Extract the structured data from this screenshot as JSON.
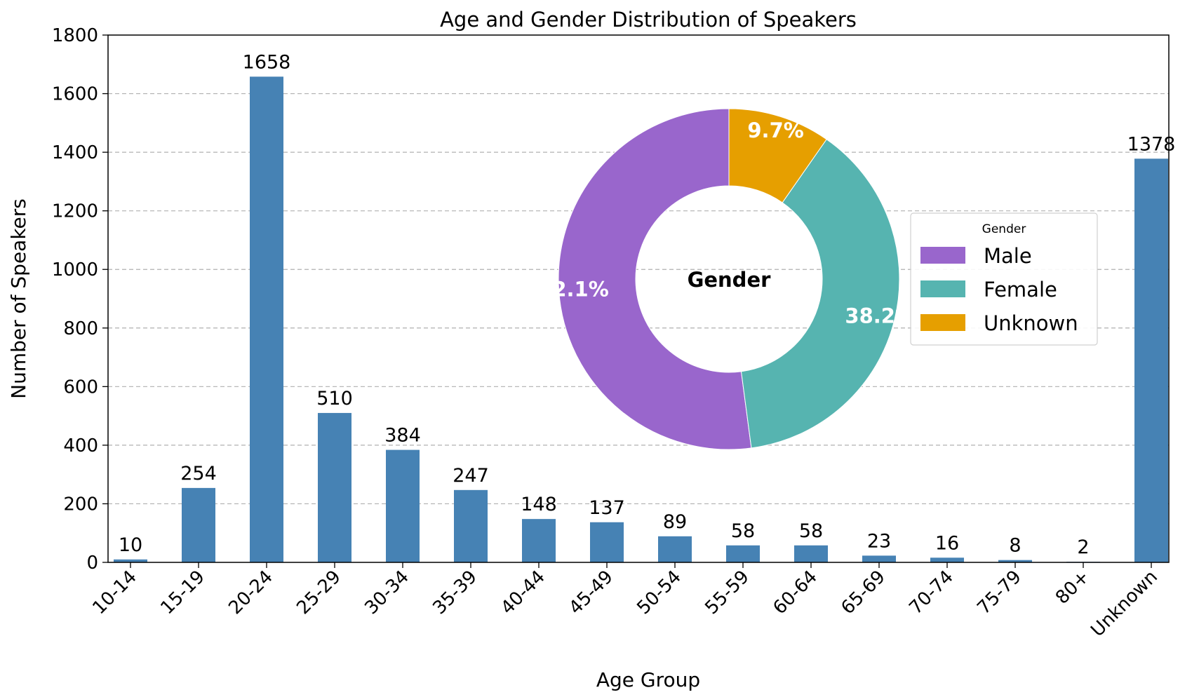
{
  "chart_data": [
    {
      "type": "bar",
      "title": "Age and Gender Distribution of Speakers",
      "xlabel": "Age Group",
      "ylabel": "Number of Speakers",
      "categories": [
        "10-14",
        "15-19",
        "20-24",
        "25-29",
        "30-34",
        "35-39",
        "40-44",
        "45-49",
        "50-54",
        "55-59",
        "60-64",
        "65-69",
        "70-74",
        "75-79",
        "80+",
        "Unknown"
      ],
      "values": [
        10,
        254,
        1658,
        510,
        384,
        247,
        148,
        137,
        89,
        58,
        58,
        23,
        16,
        8,
        2,
        1378
      ],
      "data_labels": [
        "10",
        "254",
        "1658",
        "510",
        "384",
        "247",
        "148",
        "137",
        "89",
        "58",
        "58",
        "23",
        "16",
        "8",
        "2",
        "1378"
      ],
      "ylim": [
        0,
        1800
      ],
      "yticks": [
        "0",
        "200",
        "400",
        "600",
        "800",
        "1000",
        "1200",
        "1400",
        "1600",
        "1800"
      ],
      "grid": "horizontal dashed",
      "color": "#4682b4"
    },
    {
      "type": "pie",
      "style": "donut",
      "center_label": "Gender",
      "legend_title": "Gender",
      "legend_position": "right",
      "slices": [
        {
          "label": "Male",
          "value": 52.1,
          "pct_label": "52.1%",
          "color": "#9966cc"
        },
        {
          "label": "Female",
          "value": 38.2,
          "pct_label": "38.2%",
          "color": "#56b4b0"
        },
        {
          "label": "Unknown",
          "value": 9.7,
          "pct_label": "9.7%",
          "color": "#e69f00"
        }
      ]
    }
  ]
}
